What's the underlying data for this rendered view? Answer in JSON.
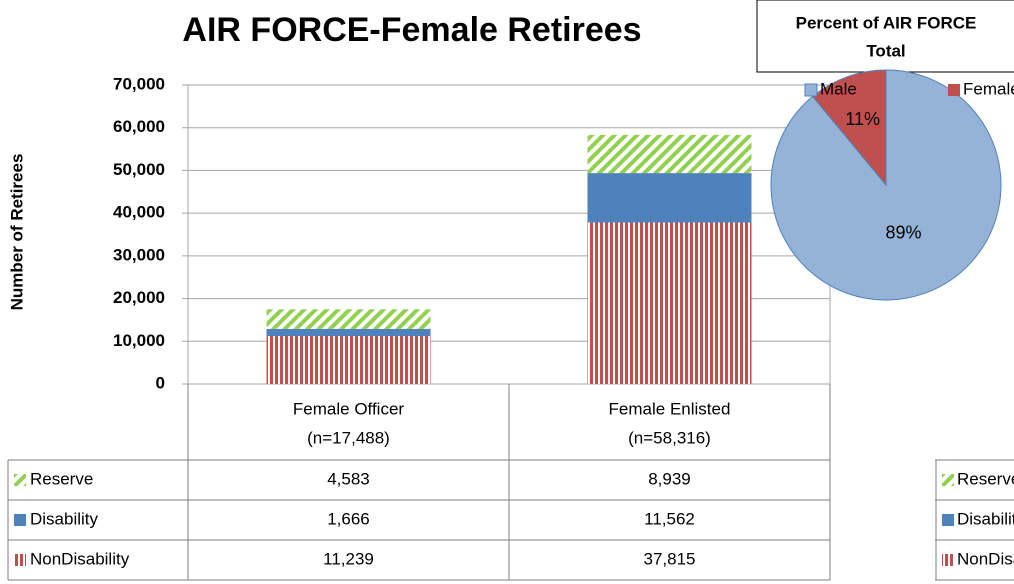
{
  "chart_data": [
    {
      "type": "bar",
      "stacked": true,
      "title": "AIR FORCE-Female Retirees",
      "y_label": "Number of Retirees",
      "categories": [
        [
          "Female Officer",
          "(n=17,488)"
        ],
        [
          "Female Enlisted",
          "(n=58,316)"
        ]
      ],
      "series": [
        {
          "name": "Reserve",
          "color": "#92d050",
          "pattern": "diagonal-hatch",
          "values": [
            4583,
            8939
          ],
          "value_labels": [
            "4,583",
            "8,939"
          ]
        },
        {
          "name": "Disability",
          "color": "#4f81bd",
          "pattern": "solid",
          "values": [
            1666,
            11562
          ],
          "value_labels": [
            "1,666",
            "11,562"
          ]
        },
        {
          "name": "NonDisability",
          "color": "#c0504d",
          "pattern": "vertical-stripes",
          "values": [
            11239,
            37815
          ],
          "value_labels": [
            "11,239",
            "37,815"
          ]
        }
      ],
      "ylim": [
        0,
        70000
      ],
      "yticks": [
        {
          "value": 0,
          "label": "0"
        },
        {
          "value": 10000,
          "label": "10,000"
        },
        {
          "value": 20000,
          "label": "20,000"
        },
        {
          "value": 30000,
          "label": "30,000"
        },
        {
          "value": 40000,
          "label": "40,000"
        },
        {
          "value": 50000,
          "label": "50,000"
        },
        {
          "value": 60000,
          "label": "60,000"
        },
        {
          "value": 70000,
          "label": "70,000"
        }
      ],
      "grid": true,
      "legend": "data-table"
    },
    {
      "type": "pie",
      "title": [
        "Percent of  AIR FORCE",
        "Total"
      ],
      "categories": [
        "Male",
        "Female"
      ],
      "values": [
        89,
        11
      ],
      "value_labels": [
        "89%",
        "11%"
      ],
      "colors": [
        "#95b3d7",
        "#c0504d"
      ],
      "legend": "top"
    }
  ]
}
